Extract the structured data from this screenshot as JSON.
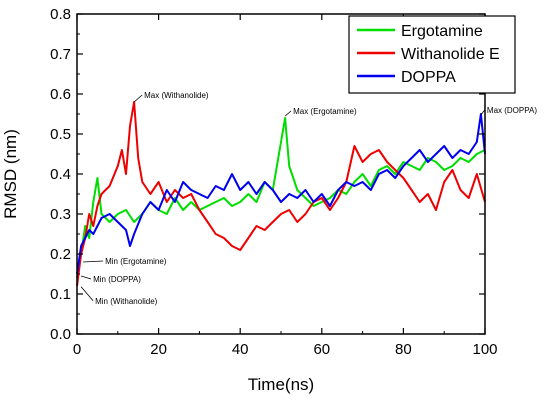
{
  "chart_data": {
    "type": "line",
    "xlabel": "Time(ns)",
    "ylabel": "RMSD (nm)",
    "xlim": [
      0,
      100
    ],
    "ylim": [
      0.0,
      0.8
    ],
    "x_ticks": [
      "0",
      "20",
      "40",
      "60",
      "80",
      "100"
    ],
    "y_ticks": [
      "0.0",
      "0.1",
      "0.2",
      "0.3",
      "0.4",
      "0.5",
      "0.6",
      "0.7",
      "0.8"
    ],
    "grid": false,
    "legend_position": "top-right",
    "series": [
      {
        "name": "Ergotamine",
        "color": "#00dd00",
        "x": [
          0,
          1,
          2,
          3,
          4,
          5,
          6,
          8,
          10,
          12,
          14,
          16,
          18,
          20,
          22,
          24,
          26,
          28,
          30,
          32,
          34,
          36,
          38,
          40,
          42,
          44,
          46,
          48,
          50,
          51,
          52,
          54,
          56,
          58,
          60,
          62,
          64,
          66,
          68,
          70,
          72,
          74,
          76,
          78,
          80,
          82,
          84,
          86,
          88,
          90,
          92,
          94,
          96,
          98,
          100
        ],
        "y": [
          0.14,
          0.2,
          0.27,
          0.24,
          0.33,
          0.39,
          0.3,
          0.28,
          0.3,
          0.31,
          0.28,
          0.3,
          0.33,
          0.31,
          0.3,
          0.34,
          0.31,
          0.33,
          0.31,
          0.32,
          0.33,
          0.34,
          0.32,
          0.33,
          0.35,
          0.33,
          0.38,
          0.36,
          0.48,
          0.54,
          0.42,
          0.36,
          0.34,
          0.32,
          0.33,
          0.34,
          0.36,
          0.35,
          0.38,
          0.4,
          0.37,
          0.41,
          0.42,
          0.4,
          0.43,
          0.42,
          0.41,
          0.44,
          0.43,
          0.41,
          0.42,
          0.44,
          0.43,
          0.45,
          0.46
        ]
      },
      {
        "name": "Withanolide E",
        "color": "#ee0000",
        "x": [
          0,
          1,
          2,
          3,
          4,
          5,
          6,
          8,
          10,
          11,
          12,
          13,
          14,
          15,
          16,
          18,
          20,
          22,
          24,
          26,
          28,
          30,
          32,
          34,
          36,
          38,
          40,
          42,
          44,
          46,
          48,
          50,
          52,
          54,
          56,
          58,
          60,
          62,
          64,
          66,
          68,
          70,
          72,
          74,
          76,
          78,
          80,
          82,
          84,
          86,
          88,
          90,
          92,
          94,
          96,
          98,
          100
        ],
        "y": [
          0.12,
          0.2,
          0.24,
          0.3,
          0.27,
          0.32,
          0.35,
          0.37,
          0.42,
          0.46,
          0.4,
          0.52,
          0.58,
          0.44,
          0.38,
          0.35,
          0.38,
          0.33,
          0.36,
          0.34,
          0.35,
          0.31,
          0.28,
          0.25,
          0.24,
          0.22,
          0.21,
          0.24,
          0.27,
          0.26,
          0.28,
          0.3,
          0.31,
          0.28,
          0.3,
          0.33,
          0.34,
          0.31,
          0.34,
          0.38,
          0.47,
          0.43,
          0.45,
          0.46,
          0.43,
          0.41,
          0.39,
          0.36,
          0.33,
          0.35,
          0.31,
          0.38,
          0.41,
          0.36,
          0.34,
          0.4,
          0.33
        ]
      },
      {
        "name": "DOPPA",
        "color": "#0000ee",
        "x": [
          0,
          1,
          2,
          3,
          4,
          5,
          6,
          8,
          10,
          12,
          13,
          14,
          16,
          18,
          20,
          22,
          24,
          26,
          28,
          30,
          32,
          34,
          36,
          38,
          40,
          42,
          44,
          46,
          48,
          50,
          52,
          54,
          56,
          58,
          60,
          62,
          64,
          66,
          68,
          70,
          72,
          74,
          76,
          78,
          80,
          82,
          84,
          86,
          88,
          90,
          92,
          94,
          96,
          98,
          99,
          100
        ],
        "y": [
          0.15,
          0.22,
          0.24,
          0.26,
          0.25,
          0.27,
          0.29,
          0.3,
          0.28,
          0.26,
          0.22,
          0.25,
          0.3,
          0.33,
          0.31,
          0.36,
          0.33,
          0.38,
          0.36,
          0.35,
          0.34,
          0.37,
          0.36,
          0.4,
          0.36,
          0.38,
          0.35,
          0.38,
          0.36,
          0.33,
          0.35,
          0.34,
          0.36,
          0.33,
          0.35,
          0.32,
          0.36,
          0.38,
          0.37,
          0.38,
          0.36,
          0.4,
          0.41,
          0.39,
          0.42,
          0.44,
          0.46,
          0.43,
          0.45,
          0.47,
          0.44,
          0.46,
          0.45,
          0.48,
          0.55,
          0.45
        ]
      }
    ],
    "annotations": [
      {
        "text": "Max (Withanolide)",
        "x": 14,
        "y": 0.58
      },
      {
        "text": "Max (Ergotamine)",
        "x": 51,
        "y": 0.545
      },
      {
        "text": "Max (DOPPA)",
        "x": 99,
        "y": 0.548
      },
      {
        "text": "Min (Ergotamine)",
        "x": 1.5,
        "y": 0.18
      },
      {
        "text": "Min (DOPPA)",
        "x": 1.0,
        "y": 0.145
      },
      {
        "text": "Min (Withanolide)",
        "x": 1.0,
        "y": 0.118
      }
    ]
  }
}
